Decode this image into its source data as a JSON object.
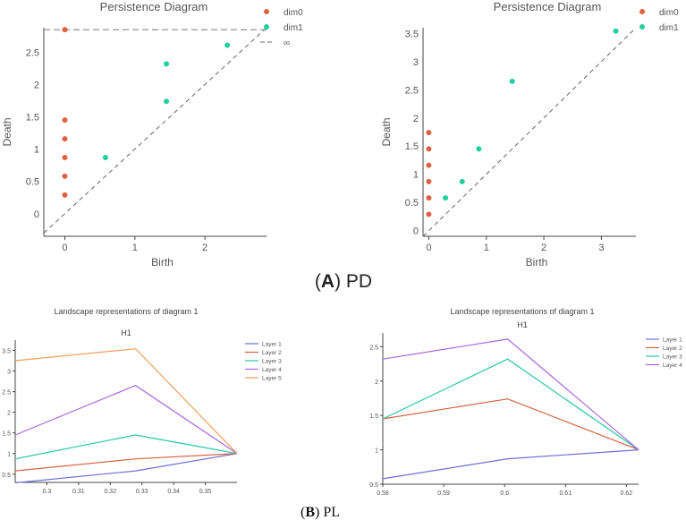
{
  "colors": {
    "dim0": "#e0603f",
    "dim1": "#1fcf9f",
    "layer1": "#6f6fd6",
    "layer2": "#d5623f",
    "layer3": "#25c9a4",
    "layer4": "#a866e0",
    "layer5": "#f0a05a",
    "axis": "#444444",
    "tick": "#555555",
    "diag": "#666666"
  },
  "captions": {
    "a_letter": "A",
    "a_text": ") PD",
    "b_letter": "B",
    "b_text": ") PL"
  },
  "chart_data": [
    {
      "id": "pd1",
      "type": "scatter",
      "title": "Persistence Diagram",
      "xlabel": "Birth",
      "ylabel": "Death",
      "xlim": [
        -0.3,
        2.88
      ],
      "ylim": [
        -0.35,
        2.88
      ],
      "xticks": [
        0,
        1,
        2
      ],
      "yticks": [
        0,
        0.5,
        1,
        1.5,
        2,
        2.5
      ],
      "infinity_line": 2.85,
      "legend": [
        "dim0",
        "dim1",
        "∞"
      ],
      "series": [
        {
          "name": "dim0",
          "points": [
            [
              0,
              0.29
            ],
            [
              0,
              0.58
            ],
            [
              0,
              0.87
            ],
            [
              0,
              1.16
            ],
            [
              0,
              1.45
            ],
            [
              0,
              2.85
            ]
          ]
        },
        {
          "name": "dim1",
          "points": [
            [
              0.58,
              0.87
            ],
            [
              1.45,
              1.74
            ],
            [
              1.45,
              2.32
            ],
            [
              2.32,
              2.61
            ]
          ]
        }
      ]
    },
    {
      "id": "pd2",
      "type": "scatter",
      "title": "Persistence Diagram",
      "xlabel": "Birth",
      "ylabel": "Death",
      "xlim": [
        -0.1,
        3.6
      ],
      "ylim": [
        -0.1,
        3.6
      ],
      "xticks": [
        0,
        1,
        2,
        3
      ],
      "yticks": [
        0,
        0.5,
        1,
        1.5,
        2,
        2.5,
        3,
        3.5
      ],
      "legend": [
        "dim0",
        "dim1"
      ],
      "series": [
        {
          "name": "dim0",
          "points": [
            [
              0,
              0.29
            ],
            [
              0,
              0.58
            ],
            [
              0,
              0.87
            ],
            [
              0,
              1.16
            ],
            [
              0,
              1.45
            ],
            [
              0,
              1.74
            ]
          ]
        },
        {
          "name": "dim1",
          "points": [
            [
              0.29,
              0.58
            ],
            [
              0.58,
              0.87
            ],
            [
              0.87,
              1.45
            ],
            [
              1.45,
              2.65
            ],
            [
              3.25,
              3.54
            ]
          ]
        }
      ]
    },
    {
      "id": "pl1",
      "type": "line",
      "title": "Landscape representations of diagram 1",
      "subtitle": "H1",
      "xlim": [
        0.29,
        0.36
      ],
      "ylim": [
        0.3,
        3.75
      ],
      "xticks": [
        0.3,
        0.31,
        0.32,
        0.33,
        0.34,
        0.35
      ],
      "yticks": [
        0.5,
        1,
        1.5,
        2,
        2.5,
        3,
        3.5
      ],
      "x": [
        0.29,
        0.328,
        0.36
      ],
      "series": [
        {
          "name": "Layer 1",
          "values": [
            0.29,
            0.58,
            1.0
          ]
        },
        {
          "name": "Layer 2",
          "values": [
            0.58,
            0.87,
            1.0
          ]
        },
        {
          "name": "Layer 3",
          "values": [
            0.87,
            1.45,
            1.0
          ]
        },
        {
          "name": "Layer 4",
          "values": [
            1.45,
            2.65,
            1.0
          ]
        },
        {
          "name": "Layer 5",
          "values": [
            3.25,
            3.54,
            1.0
          ]
        }
      ]
    },
    {
      "id": "pl2",
      "type": "line",
      "title": "Landscape representations of diagram 1",
      "subtitle": "H1",
      "xlim": [
        0.58,
        0.622
      ],
      "ylim": [
        0.5,
        2.7
      ],
      "xticks": [
        0.58,
        0.59,
        0.6,
        0.61,
        0.62
      ],
      "yticks": [
        0.5,
        1,
        1.5,
        2,
        2.5
      ],
      "x": [
        0.58,
        0.6005,
        0.622
      ],
      "series": [
        {
          "name": "Layer 1",
          "values": [
            0.58,
            0.87,
            1.0
          ]
        },
        {
          "name": "Layer 2",
          "values": [
            1.45,
            1.74,
            1.0
          ]
        },
        {
          "name": "Layer 3",
          "values": [
            1.45,
            2.32,
            1.0
          ]
        },
        {
          "name": "Layer 4",
          "values": [
            2.32,
            2.61,
            1.0
          ]
        }
      ]
    }
  ]
}
